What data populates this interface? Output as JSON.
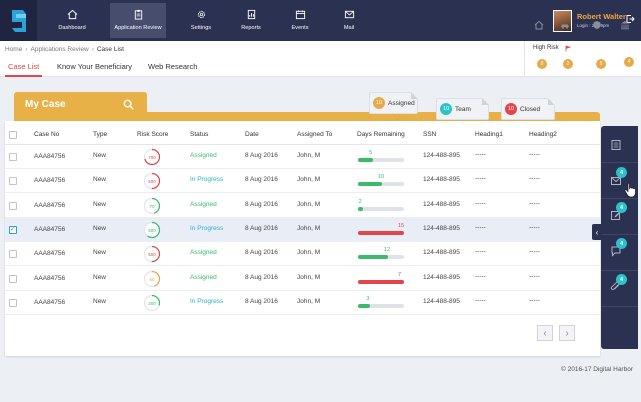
{
  "nav": {
    "items": [
      {
        "label": "Dashboard",
        "icon": "home-icon"
      },
      {
        "label": "Application Review",
        "icon": "clipboard-icon"
      },
      {
        "label": "Settings",
        "icon": "gear-icon"
      },
      {
        "label": "Reports",
        "icon": "report-icon"
      },
      {
        "label": "Events",
        "icon": "calendar-icon"
      },
      {
        "label": "Mail",
        "icon": "mail-icon"
      }
    ],
    "active": "Application Review"
  },
  "user": {
    "name": "Robert Walter",
    "login": "Login : 20:59pm"
  },
  "breadcrumb": [
    "Home",
    "Applications Review",
    "Case List"
  ],
  "tabs": [
    "Case List",
    "Know Your Beneficiary",
    "Web Research"
  ],
  "risk": {
    "title": "High Risk",
    "flag_color": "#e0464b",
    "badges": [
      "9",
      "2",
      "5",
      "4"
    ]
  },
  "folder": {
    "title": "My Case"
  },
  "status_tabs": [
    {
      "count": "10",
      "label": "Assigned",
      "color": "#e8a94a"
    },
    {
      "count": "10",
      "label": "Team",
      "color": "#2bc3c9"
    },
    {
      "count": "10",
      "label": "Closed",
      "color": "#e0464b"
    }
  ],
  "table": {
    "headers": [
      "Case No",
      "Type",
      "Risk Score",
      "Status",
      "Date",
      "Assigned To",
      "Days Remaining",
      "SSN",
      "Heading1",
      "Heading2"
    ],
    "rows": [
      {
        "case": "AAA84756",
        "type": "New",
        "risk": "700",
        "risk_color": "#e0464b",
        "risk_level": 0.7,
        "status": "Assigned",
        "status_color": "#3cba6b",
        "date": "8 Aug 2016",
        "assigned": "John, M",
        "days": "5",
        "days_fill": 0.33,
        "bar_color": "#3cba6b",
        "ssn": "124-488-895",
        "h1": "-----",
        "h2": "-----",
        "checked": false
      },
      {
        "case": "AAA84756",
        "type": "New",
        "risk": "500",
        "risk_color": "#e0464b",
        "risk_level": 0.5,
        "status": "In Progress",
        "status_color": "#2bb3c9",
        "date": "8 Aug 2016",
        "assigned": "John, M",
        "days": "10",
        "days_fill": 0.52,
        "bar_color": "#3cba6b",
        "ssn": "124-488-895",
        "h1": "-----",
        "h2": "-----",
        "checked": false
      },
      {
        "case": "AAA84756",
        "type": "New",
        "risk": "70",
        "risk_color": "#3cba6b",
        "risk_level": 0.45,
        "status": "Assigned",
        "status_color": "#3cba6b",
        "date": "8 Aug 2016",
        "assigned": "John, M",
        "days": "2",
        "days_fill": 0.1,
        "bar_color": "#3cba6b",
        "ssn": "124-488-895",
        "h1": "-----",
        "h2": "-----",
        "checked": false
      },
      {
        "case": "AAA84756",
        "type": "New",
        "risk": "500",
        "risk_color": "#3cba6b",
        "risk_level": 0.6,
        "status": "In Progress",
        "status_color": "#2bb3c9",
        "date": "8 Aug 2016",
        "assigned": "John, M",
        "days": "15",
        "days_fill": 1.0,
        "bar_color": "#e0464b",
        "ssn": "124-488-895",
        "h1": "-----",
        "h2": "-----",
        "checked": true
      },
      {
        "case": "AAA84756",
        "type": "New",
        "risk": "500",
        "risk_color": "#e0464b",
        "risk_level": 0.5,
        "status": "Assigned",
        "status_color": "#3cba6b",
        "date": "8 Aug 2016",
        "assigned": "John, M",
        "days": "12",
        "days_fill": 0.65,
        "bar_color": "#3cba6b",
        "ssn": "124-488-895",
        "h1": "-----",
        "h2": "-----",
        "checked": false
      },
      {
        "case": "AAA84756",
        "type": "New",
        "risk": "50",
        "risk_color": "#e8a94a",
        "risk_level": 0.45,
        "status": "Assigned",
        "status_color": "#3cba6b",
        "date": "8 Aug 2016",
        "assigned": "John, M",
        "days": "7",
        "days_fill": 1.0,
        "bar_color": "#e0464b",
        "ssn": "124-488-895",
        "h1": "-----",
        "h2": "-----",
        "checked": false
      },
      {
        "case": "AAA84756",
        "type": "New",
        "risk": "200",
        "risk_color": "#3cba6b",
        "risk_level": 0.3,
        "status": "In Progress",
        "status_color": "#2bb3c9",
        "date": "8 Aug 2016",
        "assigned": "John, M",
        "days": "3",
        "days_fill": 0.27,
        "bar_color": "#3cba6b",
        "ssn": "124-488-895",
        "h1": "-----",
        "h2": "-----",
        "checked": false
      }
    ]
  },
  "pager": {
    "prev": "‹",
    "next": "›"
  },
  "rail": {
    "items": [
      {
        "icon": "document-icon",
        "badge": ""
      },
      {
        "icon": "mail-icon",
        "badge": "4"
      },
      {
        "icon": "edit-icon",
        "badge": "4"
      },
      {
        "icon": "chat-icon",
        "badge": "4"
      },
      {
        "icon": "attachment-icon",
        "badge": "4"
      }
    ],
    "toggle": "‹"
  },
  "footer": "© 2016-17  Digital Harbor"
}
